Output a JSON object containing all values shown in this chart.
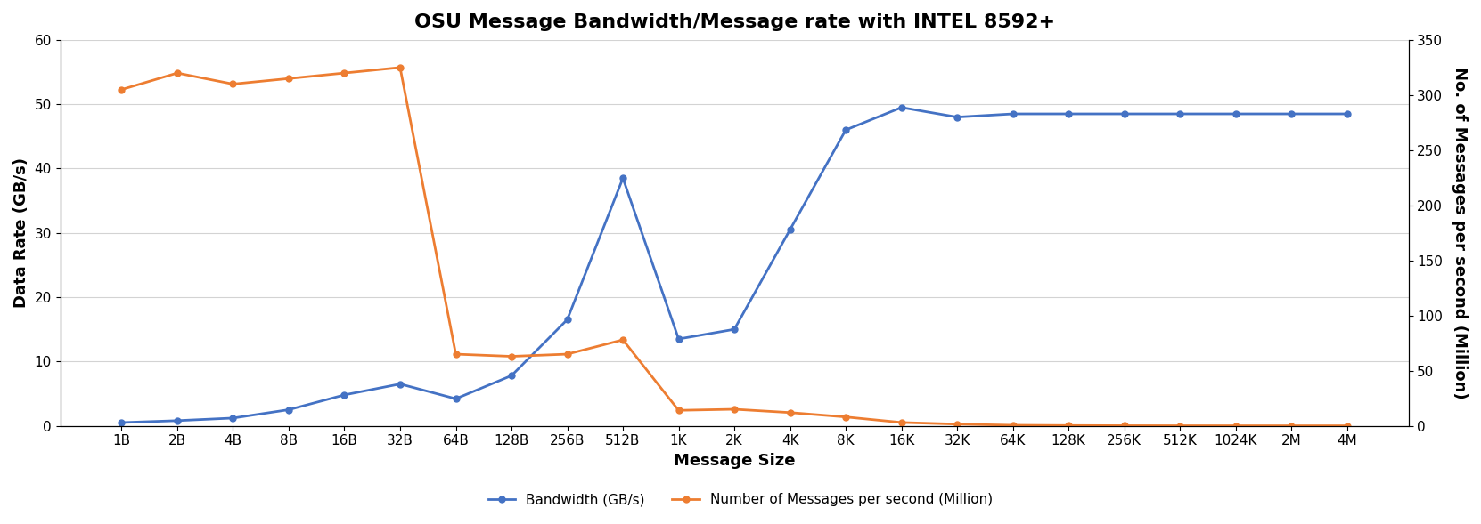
{
  "title": "OSU Message Bandwidth/Message rate with INTEL 8592+",
  "xlabel": "Message Size",
  "ylabel_left": "Data Rate (GB/s)",
  "ylabel_right": "No. of Messages per second (Million)",
  "legend_bandwidth": "Bandwidth (GB/s)",
  "legend_msgrate": "Number of Messages per second (Million)",
  "x_labels": [
    "1B",
    "2B",
    "4B",
    "8B",
    "16B",
    "32B",
    "64B",
    "128B",
    "256B",
    "512B",
    "1K",
    "2K",
    "4K",
    "8K",
    "16K",
    "32K",
    "64K",
    "128K",
    "256K",
    "512K",
    "1024K",
    "2M",
    "4M"
  ],
  "bandwidth_GB": [
    0.5,
    0.8,
    1.2,
    2.5,
    4.8,
    6.5,
    4.2,
    7.8,
    16.5,
    38.5,
    13.5,
    15.0,
    30.5,
    46.0,
    49.5,
    48.0,
    48.5,
    48.5,
    48.5,
    48.5,
    48.5,
    48.5,
    48.5
  ],
  "msg_rate_million": [
    305,
    320,
    310,
    315,
    320,
    325,
    65,
    63,
    65,
    78,
    14,
    15,
    12,
    8,
    3,
    1.5,
    0.5,
    0.25,
    0.12,
    0.06,
    0.03,
    0.015,
    0.008
  ],
  "ylim_left": [
    0,
    60
  ],
  "ylim_right": [
    0,
    350
  ],
  "yticks_left": [
    0,
    10,
    20,
    30,
    40,
    50,
    60
  ],
  "yticks_right": [
    0,
    50,
    100,
    150,
    200,
    250,
    300,
    350
  ],
  "color_bandwidth": "#4472C4",
  "color_msgrate": "#ED7D31",
  "background_color": "#ffffff",
  "grid_color": "#d3d3d3",
  "title_fontsize": 16,
  "axis_label_fontsize": 13,
  "tick_fontsize": 11,
  "legend_fontsize": 11,
  "line_width": 2.0,
  "marker": "o",
  "marker_size": 5
}
